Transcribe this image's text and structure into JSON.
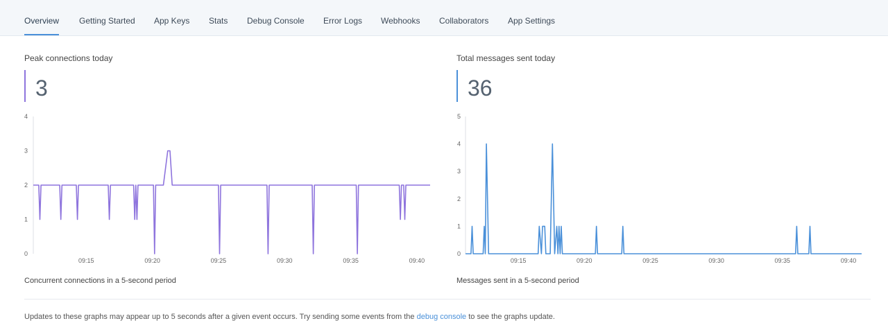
{
  "tabs": [
    {
      "label": "Overview",
      "active": true
    },
    {
      "label": "Getting Started"
    },
    {
      "label": "App Keys"
    },
    {
      "label": "Stats"
    },
    {
      "label": "Debug Console"
    },
    {
      "label": "Error Logs"
    },
    {
      "label": "Webhooks"
    },
    {
      "label": "Collaborators"
    },
    {
      "label": "App Settings"
    }
  ],
  "panels": {
    "connections": {
      "title": "Peak connections today",
      "value": "3",
      "caption": "Concurrent connections in a 5-second period",
      "color": "#8e74dd"
    },
    "messages": {
      "title": "Total messages sent today",
      "value": "36",
      "caption": "Messages sent in a 5-second period",
      "color": "#4a90d9"
    }
  },
  "footnote": {
    "before": "Updates to these graphs may appear up to 5 seconds after a given event occurs. Try sending some events from the ",
    "link": "debug console",
    "after": " to see the graphs update."
  },
  "chart_data": [
    {
      "type": "line",
      "ylim": [
        0,
        4
      ],
      "yticks": [
        0,
        1,
        2,
        3,
        4
      ],
      "xlim": [
        "09:11:00",
        "09:41:00"
      ],
      "xticks": [
        "09:15",
        "09:20",
        "09:25",
        "09:30",
        "09:35",
        "09:40"
      ],
      "series": [
        {
          "color": "#8e74dd",
          "points": [
            [
              "09:11:00",
              2
            ],
            [
              "09:11:25",
              2
            ],
            [
              "09:11:30",
              1
            ],
            [
              "09:11:35",
              2
            ],
            [
              "09:13:00",
              2
            ],
            [
              "09:13:05",
              1
            ],
            [
              "09:13:10",
              2
            ],
            [
              "09:14:15",
              2
            ],
            [
              "09:14:20",
              1
            ],
            [
              "09:14:25",
              2
            ],
            [
              "09:16:40",
              2
            ],
            [
              "09:16:45",
              1
            ],
            [
              "09:16:50",
              2
            ],
            [
              "09:18:35",
              2
            ],
            [
              "09:18:40",
              1
            ],
            [
              "09:18:45",
              2
            ],
            [
              "09:18:50",
              1
            ],
            [
              "09:18:55",
              2
            ],
            [
              "09:20:05",
              2
            ],
            [
              "09:20:10",
              0
            ],
            [
              "09:20:15",
              2
            ],
            [
              "09:20:45",
              2
            ],
            [
              "09:20:50",
              2
            ],
            [
              "09:21:10",
              3
            ],
            [
              "09:21:20",
              3
            ],
            [
              "09:21:30",
              2
            ],
            [
              "09:25:00",
              2
            ],
            [
              "09:25:05",
              0
            ],
            [
              "09:25:10",
              2
            ],
            [
              "09:28:40",
              2
            ],
            [
              "09:28:45",
              0
            ],
            [
              "09:28:50",
              2
            ],
            [
              "09:32:05",
              2
            ],
            [
              "09:32:10",
              0
            ],
            [
              "09:32:15",
              2
            ],
            [
              "09:35:25",
              2
            ],
            [
              "09:35:30",
              0
            ],
            [
              "09:35:35",
              2
            ],
            [
              "09:38:40",
              2
            ],
            [
              "09:38:45",
              1
            ],
            [
              "09:38:50",
              2
            ],
            [
              "09:39:00",
              2
            ],
            [
              "09:39:05",
              1
            ],
            [
              "09:39:10",
              2
            ],
            [
              "09:41:00",
              2
            ]
          ]
        }
      ]
    },
    {
      "type": "line",
      "ylim": [
        0,
        5
      ],
      "yticks": [
        0,
        1,
        2,
        3,
        4,
        5
      ],
      "xlim": [
        "09:11:00",
        "09:41:00"
      ],
      "xticks": [
        "09:15",
        "09:20",
        "09:25",
        "09:30",
        "09:35",
        "09:40"
      ],
      "series": [
        {
          "color": "#4a90d9",
          "points": [
            [
              "09:11:00",
              0
            ],
            [
              "09:11:25",
              0
            ],
            [
              "09:11:30",
              1
            ],
            [
              "09:11:35",
              0
            ],
            [
              "09:12:20",
              0
            ],
            [
              "09:12:25",
              1
            ],
            [
              "09:12:30",
              0
            ],
            [
              "09:12:35",
              4
            ],
            [
              "09:12:45",
              0
            ],
            [
              "09:16:30",
              0
            ],
            [
              "09:16:35",
              1
            ],
            [
              "09:16:45",
              0
            ],
            [
              "09:16:50",
              1
            ],
            [
              "09:17:00",
              1
            ],
            [
              "09:17:05",
              0
            ],
            [
              "09:17:25",
              0
            ],
            [
              "09:17:35",
              4
            ],
            [
              "09:17:45",
              0
            ],
            [
              "09:17:55",
              1
            ],
            [
              "09:18:00",
              0
            ],
            [
              "09:18:05",
              1
            ],
            [
              "09:18:10",
              0
            ],
            [
              "09:18:15",
              1
            ],
            [
              "09:18:20",
              0
            ],
            [
              "09:20:50",
              0
            ],
            [
              "09:20:55",
              1
            ],
            [
              "09:21:00",
              0
            ],
            [
              "09:22:50",
              0
            ],
            [
              "09:22:55",
              1
            ],
            [
              "09:23:00",
              0
            ],
            [
              "09:36:00",
              0
            ],
            [
              "09:36:05",
              1
            ],
            [
              "09:36:10",
              0
            ],
            [
              "09:37:00",
              0
            ],
            [
              "09:37:05",
              1
            ],
            [
              "09:37:10",
              0
            ],
            [
              "09:41:00",
              0
            ]
          ]
        }
      ]
    }
  ]
}
